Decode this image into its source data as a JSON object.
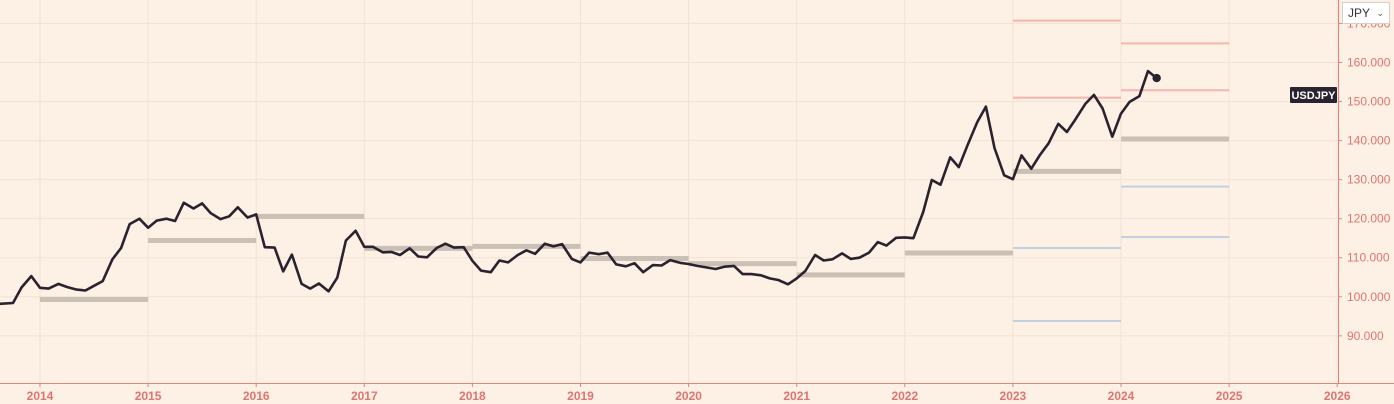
{
  "currency_selector": {
    "value": "JPY",
    "icon": "chevron-down-icon"
  },
  "colors": {
    "background": "#fdf0e4",
    "grid": "#f3e2d2",
    "axis": "#e8807c",
    "axis_text": "#e07470",
    "price_line": "#2b2230",
    "average_bar": "#cbc0b6",
    "forecast_high": "#f6b5ad",
    "forecast_low": "#c2d0e2",
    "series_label_bg": "#2b2230",
    "series_label_text": "#ffffff"
  },
  "chart_data": {
    "type": "line",
    "title": "",
    "xlabel": "",
    "ylabel": "",
    "x_ticks": [
      "2014",
      "2015",
      "2016",
      "2017",
      "2018",
      "2019",
      "2020",
      "2021",
      "2022",
      "2023",
      "2024",
      "2025",
      "2026"
    ],
    "y_ticks": [
      "90.000",
      "100.000",
      "110.000",
      "120.000",
      "130.000",
      "140.000",
      "150.000",
      "160.000",
      "170.000"
    ],
    "ylim": [
      84,
      174
    ],
    "xlim": [
      2013.63,
      2025.93
    ],
    "series_label": "USDJPY",
    "series": [
      {
        "name": "USDJPY",
        "points": [
          [
            2013.63,
            98.2
          ],
          [
            2013.75,
            98.4
          ],
          [
            2013.83,
            102.4
          ],
          [
            2013.92,
            105.3
          ],
          [
            2014.0,
            102.3
          ],
          [
            2014.08,
            102.1
          ],
          [
            2014.17,
            103.3
          ],
          [
            2014.25,
            102.5
          ],
          [
            2014.33,
            101.9
          ],
          [
            2014.42,
            101.6
          ],
          [
            2014.5,
            102.8
          ],
          [
            2014.58,
            104.0
          ],
          [
            2014.67,
            109.6
          ],
          [
            2014.75,
            112.5
          ],
          [
            2014.83,
            118.6
          ],
          [
            2014.92,
            120.0
          ],
          [
            2015.0,
            117.7
          ],
          [
            2015.08,
            119.5
          ],
          [
            2015.17,
            120.0
          ],
          [
            2015.25,
            119.4
          ],
          [
            2015.33,
            124.1
          ],
          [
            2015.42,
            122.6
          ],
          [
            2015.5,
            123.9
          ],
          [
            2015.58,
            121.4
          ],
          [
            2015.67,
            119.9
          ],
          [
            2015.75,
            120.6
          ],
          [
            2015.83,
            122.9
          ],
          [
            2015.92,
            120.3
          ],
          [
            2016.0,
            121.1
          ],
          [
            2016.08,
            112.7
          ],
          [
            2016.17,
            112.6
          ],
          [
            2016.25,
            106.5
          ],
          [
            2016.33,
            110.8
          ],
          [
            2016.42,
            103.3
          ],
          [
            2016.5,
            102.1
          ],
          [
            2016.58,
            103.4
          ],
          [
            2016.67,
            101.4
          ],
          [
            2016.75,
            104.9
          ],
          [
            2016.83,
            114.4
          ],
          [
            2016.92,
            116.9
          ],
          [
            2017.0,
            112.8
          ],
          [
            2017.08,
            112.8
          ],
          [
            2017.17,
            111.4
          ],
          [
            2017.25,
            111.5
          ],
          [
            2017.33,
            110.7
          ],
          [
            2017.42,
            112.4
          ],
          [
            2017.5,
            110.3
          ],
          [
            2017.58,
            110.1
          ],
          [
            2017.67,
            112.5
          ],
          [
            2017.75,
            113.6
          ],
          [
            2017.83,
            112.6
          ],
          [
            2017.92,
            112.7
          ],
          [
            2018.0,
            109.2
          ],
          [
            2018.08,
            106.7
          ],
          [
            2018.17,
            106.3
          ],
          [
            2018.25,
            109.3
          ],
          [
            2018.33,
            108.8
          ],
          [
            2018.42,
            110.7
          ],
          [
            2018.5,
            111.9
          ],
          [
            2018.58,
            111.0
          ],
          [
            2018.67,
            113.6
          ],
          [
            2018.75,
            112.9
          ],
          [
            2018.83,
            113.5
          ],
          [
            2018.92,
            109.7
          ],
          [
            2019.0,
            108.8
          ],
          [
            2019.08,
            111.3
          ],
          [
            2019.17,
            110.9
          ],
          [
            2019.25,
            111.3
          ],
          [
            2019.33,
            108.3
          ],
          [
            2019.42,
            107.8
          ],
          [
            2019.5,
            108.6
          ],
          [
            2019.58,
            106.3
          ],
          [
            2019.67,
            108.1
          ],
          [
            2019.75,
            108.0
          ],
          [
            2019.83,
            109.4
          ],
          [
            2019.92,
            108.7
          ],
          [
            2020.0,
            108.4
          ],
          [
            2020.08,
            107.9
          ],
          [
            2020.17,
            107.5
          ],
          [
            2020.25,
            107.1
          ],
          [
            2020.33,
            107.7
          ],
          [
            2020.42,
            107.9
          ],
          [
            2020.5,
            105.8
          ],
          [
            2020.58,
            105.8
          ],
          [
            2020.67,
            105.5
          ],
          [
            2020.75,
            104.7
          ],
          [
            2020.83,
            104.3
          ],
          [
            2020.92,
            103.2
          ],
          [
            2021.0,
            104.7
          ],
          [
            2021.08,
            106.6
          ],
          [
            2021.17,
            110.7
          ],
          [
            2021.25,
            109.3
          ],
          [
            2021.33,
            109.6
          ],
          [
            2021.42,
            111.1
          ],
          [
            2021.5,
            109.7
          ],
          [
            2021.58,
            110.0
          ],
          [
            2021.67,
            111.3
          ],
          [
            2021.75,
            114.0
          ],
          [
            2021.83,
            113.1
          ],
          [
            2021.92,
            115.1
          ],
          [
            2022.0,
            115.2
          ],
          [
            2022.08,
            115.0
          ],
          [
            2022.17,
            121.7
          ],
          [
            2022.25,
            129.9
          ],
          [
            2022.33,
            128.7
          ],
          [
            2022.42,
            135.7
          ],
          [
            2022.5,
            133.2
          ],
          [
            2022.58,
            138.8
          ],
          [
            2022.67,
            144.7
          ],
          [
            2022.75,
            148.7
          ],
          [
            2022.83,
            138.1
          ],
          [
            2022.92,
            131.1
          ],
          [
            2023.0,
            130.1
          ],
          [
            2023.08,
            136.2
          ],
          [
            2023.17,
            132.8
          ],
          [
            2023.25,
            136.3
          ],
          [
            2023.33,
            139.3
          ],
          [
            2023.42,
            144.3
          ],
          [
            2023.5,
            142.2
          ],
          [
            2023.58,
            145.5
          ],
          [
            2023.67,
            149.4
          ],
          [
            2023.75,
            151.7
          ],
          [
            2023.83,
            148.2
          ],
          [
            2023.92,
            141.0
          ],
          [
            2024.0,
            146.9
          ],
          [
            2024.08,
            149.9
          ],
          [
            2024.17,
            151.4
          ],
          [
            2024.25,
            157.8
          ],
          [
            2024.33,
            156.0
          ]
        ]
      }
    ],
    "yearly_average_bars": [
      {
        "year": "2014",
        "value": 99.3
      },
      {
        "year": "2015",
        "value": 114.4
      },
      {
        "year": "2016",
        "value": 120.6
      },
      {
        "year": "2017",
        "value": 112.4
      },
      {
        "year": "2018",
        "value": 112.9
      },
      {
        "year": "2019",
        "value": 109.8
      },
      {
        "year": "2020",
        "value": 108.5
      },
      {
        "year": "2021",
        "value": 105.6
      },
      {
        "year": "2022",
        "value": 111.2
      },
      {
        "year": "2023",
        "value": 132.1
      },
      {
        "year": "2024",
        "value": 140.4
      }
    ],
    "forecast_ranges": [
      {
        "year": "2023",
        "upper": [
          151.0,
          170.7
        ],
        "lower": [
          93.8,
          112.5
        ]
      },
      {
        "year": "2024",
        "upper": [
          152.9,
          164.9
        ],
        "lower": [
          115.3,
          128.2
        ]
      }
    ],
    "grid": true,
    "legend": "none"
  }
}
